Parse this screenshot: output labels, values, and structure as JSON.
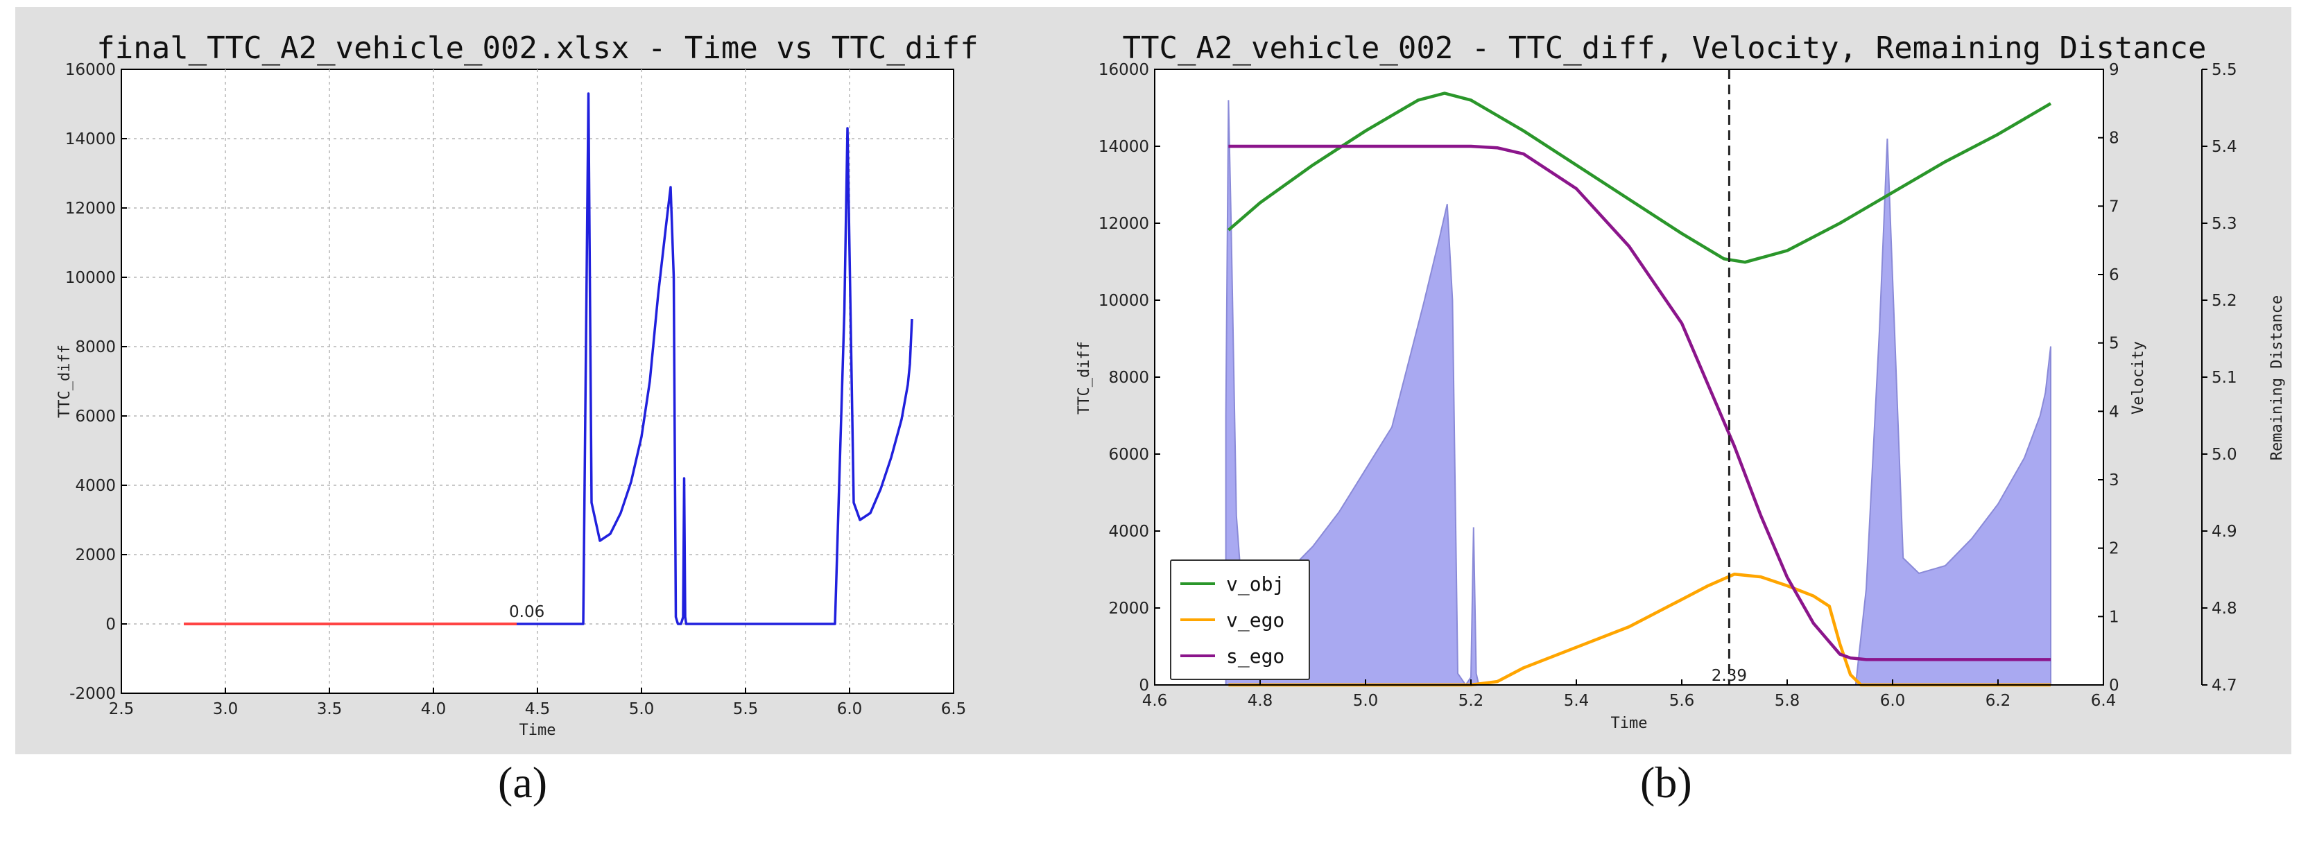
{
  "captions": {
    "a": "(a)",
    "b": "(b)"
  },
  "chart_data": [
    {
      "type": "line",
      "title": "final_TTC_A2_vehicle_002.xlsx - Time vs TTC_diff",
      "xlabel": "Time",
      "ylabel": "TTC_diff",
      "xlim": [
        2.5,
        6.5
      ],
      "ylim": [
        -2000,
        16000
      ],
      "xticks": [
        2.5,
        3.0,
        3.5,
        4.0,
        4.5,
        5.0,
        5.5,
        6.0,
        6.5
      ],
      "yticks": [
        -2000,
        0,
        2000,
        4000,
        6000,
        8000,
        10000,
        12000,
        14000,
        16000
      ],
      "grid": true,
      "annotations": [
        {
          "text": "0.06",
          "x": 4.35,
          "y": 0
        }
      ],
      "colors": {
        "red_segment": "#ff4444",
        "blue_segment": "#2020dd"
      },
      "series": [
        {
          "color": "#ff4444",
          "x": [
            2.8,
            3.2,
            3.6,
            4.0,
            4.4
          ],
          "y": [
            0,
            0,
            0,
            0,
            0
          ]
        },
        {
          "color": "#2020dd",
          "x": [
            4.4,
            4.72,
            4.745,
            4.76,
            4.8,
            4.85,
            4.9,
            4.95,
            5.0,
            5.04,
            5.08,
            5.12,
            5.14,
            5.155,
            5.165,
            5.175,
            5.19,
            5.2,
            5.205,
            5.21,
            5.215,
            5.22,
            5.24,
            5.5,
            5.93,
            5.975,
            5.99,
            6.02,
            6.05,
            6.1,
            6.15,
            6.2,
            6.25,
            6.28,
            6.29,
            6.3
          ],
          "y": [
            0,
            0,
            15300,
            3500,
            2400,
            2600,
            3200,
            4100,
            5400,
            7000,
            9500,
            11600,
            12600,
            10000,
            200,
            0,
            0,
            200,
            4200,
            200,
            0,
            0,
            0,
            0,
            0,
            9000,
            14300,
            3500,
            3000,
            3200,
            3900,
            4800,
            5900,
            6900,
            7500,
            8800
          ]
        }
      ]
    },
    {
      "type": "line",
      "title": "TTC_A2_vehicle_002 - TTC_diff, Velocity, Remaining Distance",
      "xlabel": "Time",
      "ylabel": "TTC_diff",
      "y2label": "Velocity",
      "y3label": "Remaining Distance",
      "xlim": [
        4.6,
        6.4
      ],
      "ylim": [
        0,
        16000
      ],
      "y2lim": [
        0,
        9
      ],
      "y3lim": [
        4.7,
        5.5
      ],
      "xticks": [
        4.6,
        4.8,
        5.0,
        5.2,
        5.4,
        5.6,
        5.8,
        6.0,
        6.2,
        6.4
      ],
      "yticks": [
        0,
        2000,
        4000,
        6000,
        8000,
        10000,
        12000,
        14000,
        16000
      ],
      "y2ticks": [
        0,
        1,
        2,
        3,
        4,
        5,
        6,
        7,
        8,
        9
      ],
      "y3ticks": [
        4.7,
        4.8,
        4.9,
        5.0,
        5.1,
        5.2,
        5.3,
        5.4,
        5.5
      ],
      "grid": false,
      "legend_position": "lower-left",
      "vline": {
        "x": 5.69,
        "label": "2.39"
      },
      "colors": {
        "area": "#9a9aee",
        "v_obj": "#2a962a",
        "v_ego": "#ffa500",
        "s_ego": "#8b158b",
        "y3_axis": "#a020a0"
      },
      "area": {
        "axis": "ttc",
        "x": [
          4.735,
          4.74,
          4.745,
          4.755,
          4.77,
          4.8,
          4.85,
          4.9,
          4.95,
          5.0,
          5.05,
          5.08,
          5.11,
          5.14,
          5.155,
          5.165,
          5.175,
          5.19,
          5.2,
          5.205,
          5.21,
          5.215,
          5.22,
          5.24,
          5.5,
          5.93,
          5.95,
          5.975,
          5.99,
          6.02,
          6.05,
          6.1,
          6.15,
          6.2,
          6.25,
          6.28,
          6.29,
          6.3
        ],
        "y": [
          7000,
          15200,
          12000,
          4400,
          1600,
          2400,
          2900,
          3600,
          4500,
          5600,
          6700,
          8300,
          9900,
          11600,
          12500,
          10000,
          300,
          0,
          200,
          4100,
          300,
          0,
          0,
          0,
          0,
          0,
          2500,
          9200,
          14200,
          3300,
          2900,
          3100,
          3800,
          4700,
          5900,
          7000,
          7600,
          8800
        ]
      },
      "series": [
        {
          "name": "v_obj",
          "axis": "velocity",
          "color": "#2a962a",
          "x": [
            4.74,
            4.8,
            4.9,
            5.0,
            5.1,
            5.15,
            5.2,
            5.3,
            5.4,
            5.5,
            5.6,
            5.68,
            5.72,
            5.8,
            5.9,
            6.0,
            6.1,
            6.2,
            6.3
          ],
          "y": [
            6.65,
            7.05,
            7.6,
            8.1,
            8.55,
            8.65,
            8.55,
            8.1,
            7.6,
            7.1,
            6.6,
            6.23,
            6.18,
            6.35,
            6.75,
            7.2,
            7.65,
            8.05,
            8.5
          ]
        },
        {
          "name": "v_ego",
          "axis": "velocity",
          "color": "#ffa500",
          "x": [
            4.74,
            5.0,
            5.2,
            5.25,
            5.3,
            5.4,
            5.5,
            5.6,
            5.65,
            5.7,
            5.75,
            5.8,
            5.85,
            5.88,
            5.9,
            5.92,
            5.94,
            6.0,
            6.3
          ],
          "y": [
            0,
            0,
            0,
            0.05,
            0.25,
            0.55,
            0.85,
            1.25,
            1.45,
            1.62,
            1.58,
            1.45,
            1.3,
            1.15,
            0.6,
            0.15,
            0,
            0,
            0
          ]
        },
        {
          "name": "s_ego",
          "axis": "distance",
          "color": "#8b158b",
          "x": [
            4.74,
            5.0,
            5.2,
            5.25,
            5.3,
            5.4,
            5.5,
            5.6,
            5.7,
            5.75,
            5.8,
            5.85,
            5.9,
            5.92,
            5.95,
            6.0,
            6.3
          ],
          "y": [
            5.4,
            5.4,
            5.4,
            5.398,
            5.39,
            5.345,
            5.27,
            5.17,
            5.01,
            4.92,
            4.84,
            4.78,
            4.74,
            4.735,
            4.733,
            4.733,
            4.733
          ]
        }
      ]
    }
  ]
}
